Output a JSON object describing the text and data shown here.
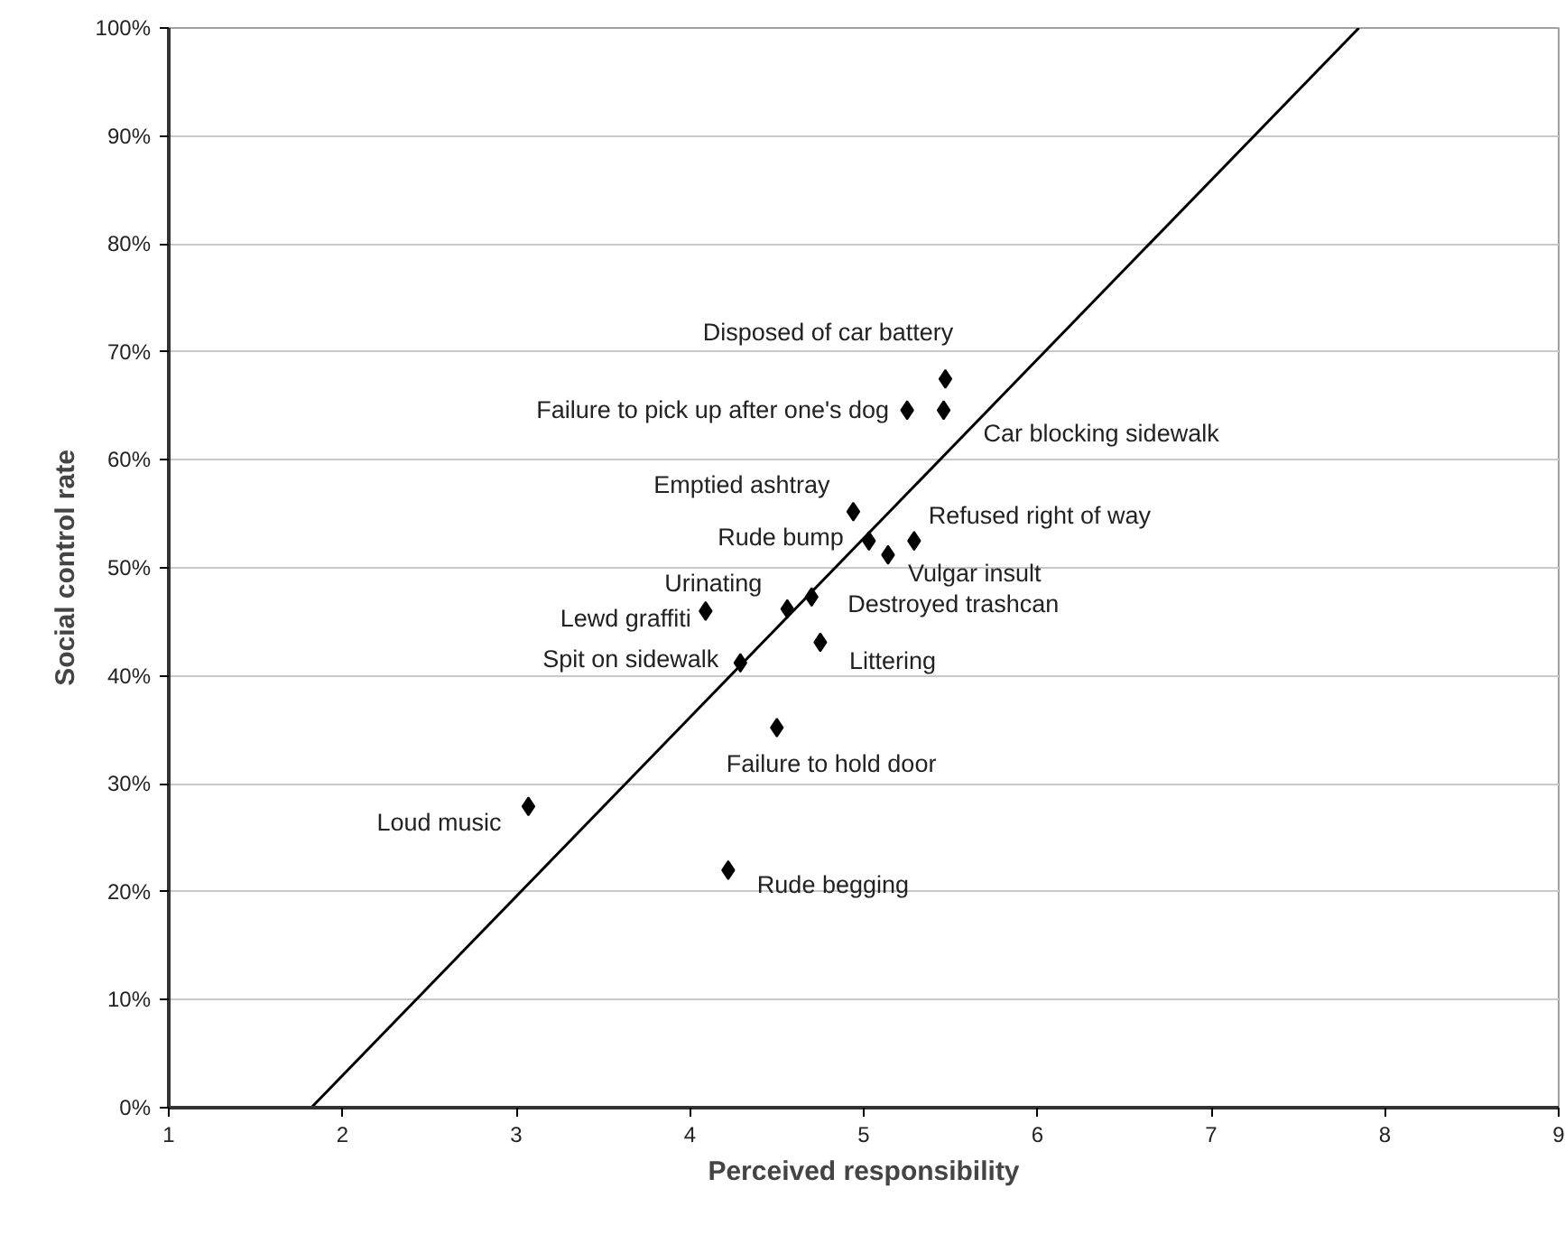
{
  "chart_data": {
    "type": "scatter",
    "xlabel": "Perceived responsibility",
    "ylabel": "Social control rate",
    "xlim": [
      1,
      9
    ],
    "xticks": [
      1,
      2,
      3,
      4,
      5,
      6,
      7,
      8,
      9
    ],
    "ylim": [
      0,
      100
    ],
    "yticks": [
      {
        "value": 0,
        "label": "0%"
      },
      {
        "value": 10,
        "label": "10%"
      },
      {
        "value": 20,
        "label": "20%"
      },
      {
        "value": 30,
        "label": "30%"
      },
      {
        "value": 40,
        "label": "40%"
      },
      {
        "value": 50,
        "label": "50%"
      },
      {
        "value": 60,
        "label": "60%"
      },
      {
        "value": 70,
        "label": "70%"
      },
      {
        "value": 80,
        "label": "80%"
      },
      {
        "value": 90,
        "label": "90%"
      },
      {
        "value": 100,
        "label": "100%"
      }
    ],
    "grid": "y",
    "marker": "diamond",
    "series": [
      {
        "color": "#000000",
        "x": [
          5.47,
          5.25,
          5.46,
          4.94,
          5.03,
          5.14,
          5.29,
          4.56,
          4.7,
          4.09,
          4.75,
          4.29,
          4.5,
          3.07,
          4.22
        ],
        "values": [
          67.5,
          64.6,
          64.6,
          55.2,
          52.5,
          51.2,
          52.5,
          46.2,
          47.3,
          46.0,
          43.1,
          41.2,
          35.2,
          27.9,
          22.0
        ]
      },
      {
        "type": "line",
        "color": "#000000",
        "marker": "none",
        "x": [
          1.82,
          7.85
        ],
        "values": [
          0,
          100
        ]
      }
    ],
    "annotations": [
      {
        "text": "Disposed of car battery",
        "x": 5.47,
        "y": 67.5
      },
      {
        "text": "Failure to pick up after one's dog",
        "x": 5.25,
        "y": 64.6
      },
      {
        "text": "Car blocking sidewalk",
        "x": 5.46,
        "y": 64.6
      },
      {
        "text": "Emptied ashtray",
        "x": 4.94,
        "y": 55.2
      },
      {
        "text": "Rude bump",
        "x": 5.03,
        "y": 52.5
      },
      {
        "text": "Vulgar insult",
        "x": 5.14,
        "y": 51.2
      },
      {
        "text": "Refused right of way",
        "x": 5.29,
        "y": 52.5
      },
      {
        "text": "Urinating",
        "x": 4.56,
        "y": 46.2
      },
      {
        "text": "Destroyed trashcan",
        "x": 4.7,
        "y": 47.3
      },
      {
        "text": "Lewd graffiti",
        "x": 4.09,
        "y": 46.0
      },
      {
        "text": "Littering",
        "x": 4.75,
        "y": 43.1
      },
      {
        "text": "Spit on sidewalk",
        "x": 4.29,
        "y": 41.2
      },
      {
        "text": "Failure to hold door",
        "x": 4.5,
        "y": 35.2
      },
      {
        "text": "Loud music",
        "x": 3.07,
        "y": 27.9
      },
      {
        "text": "Rude begging",
        "x": 4.22,
        "y": 22.0
      }
    ]
  }
}
